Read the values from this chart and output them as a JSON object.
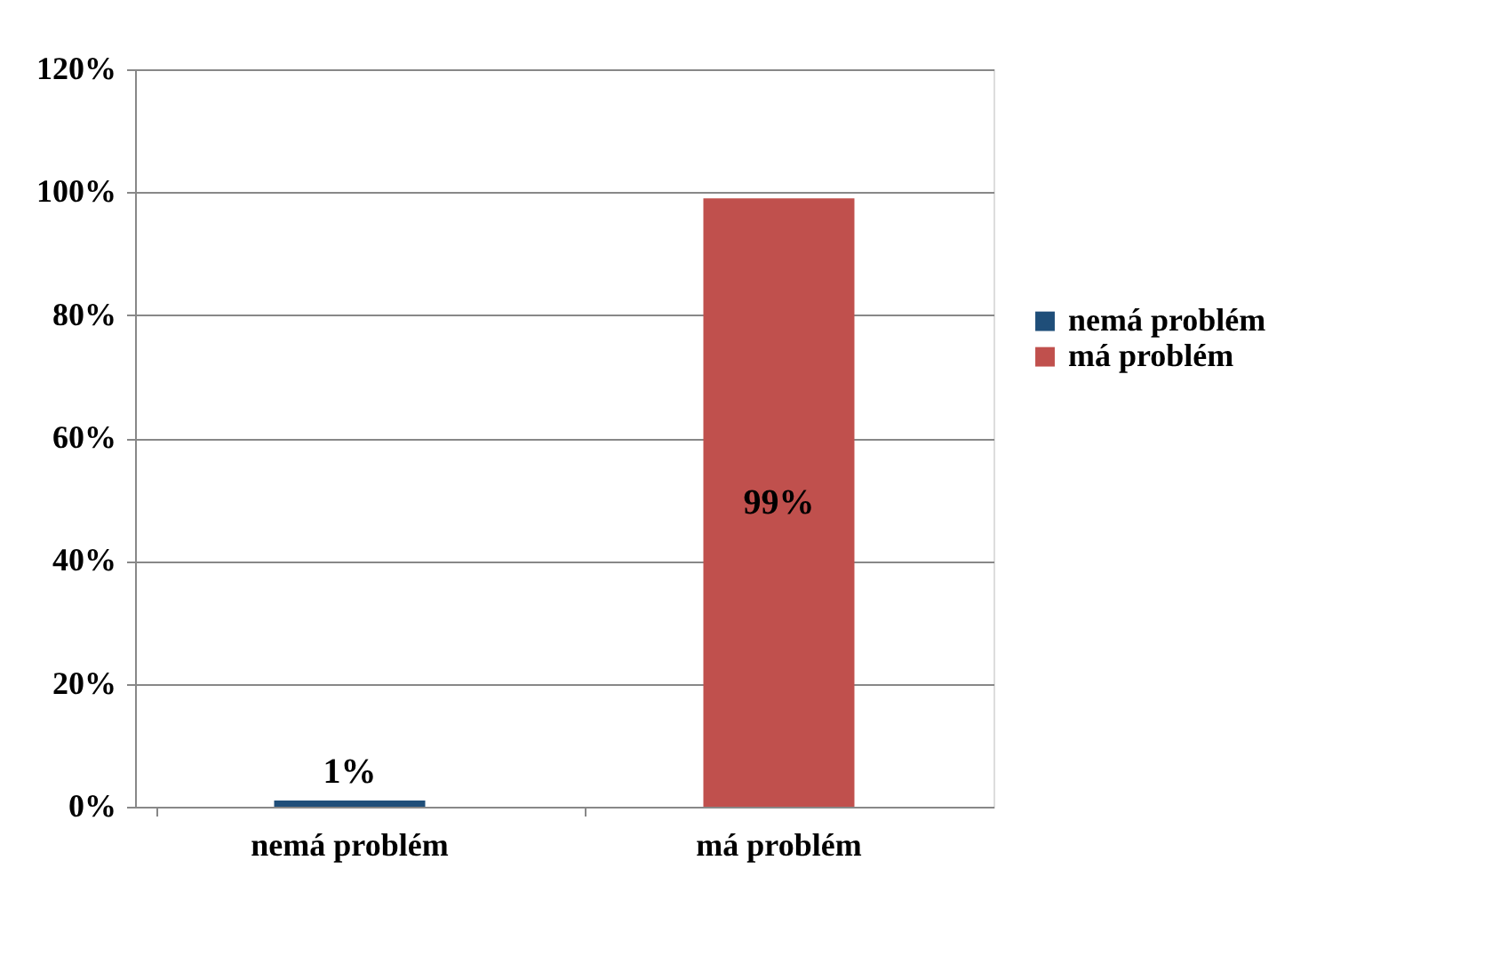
{
  "chart_data": {
    "type": "bar",
    "categories": [
      "nemá problém",
      "má problém"
    ],
    "series": [
      {
        "name": "nemá problém",
        "color": "#1f4e79",
        "values": [
          1,
          null
        ],
        "value_labels": [
          "1%",
          null
        ]
      },
      {
        "name": "má problém",
        "color": "#c0504d",
        "values": [
          null,
          99
        ],
        "value_labels": [
          null,
          "99%"
        ]
      }
    ],
    "ylim": [
      0,
      120
    ],
    "yticks": [
      {
        "value": 0,
        "label": "0%"
      },
      {
        "value": 20,
        "label": "20%"
      },
      {
        "value": 40,
        "label": "40%"
      },
      {
        "value": 60,
        "label": "60%"
      },
      {
        "value": 80,
        "label": "80%"
      },
      {
        "value": 100,
        "label": "100%"
      },
      {
        "value": 120,
        "label": "120%"
      }
    ],
    "grid": "y",
    "legend": "right"
  }
}
